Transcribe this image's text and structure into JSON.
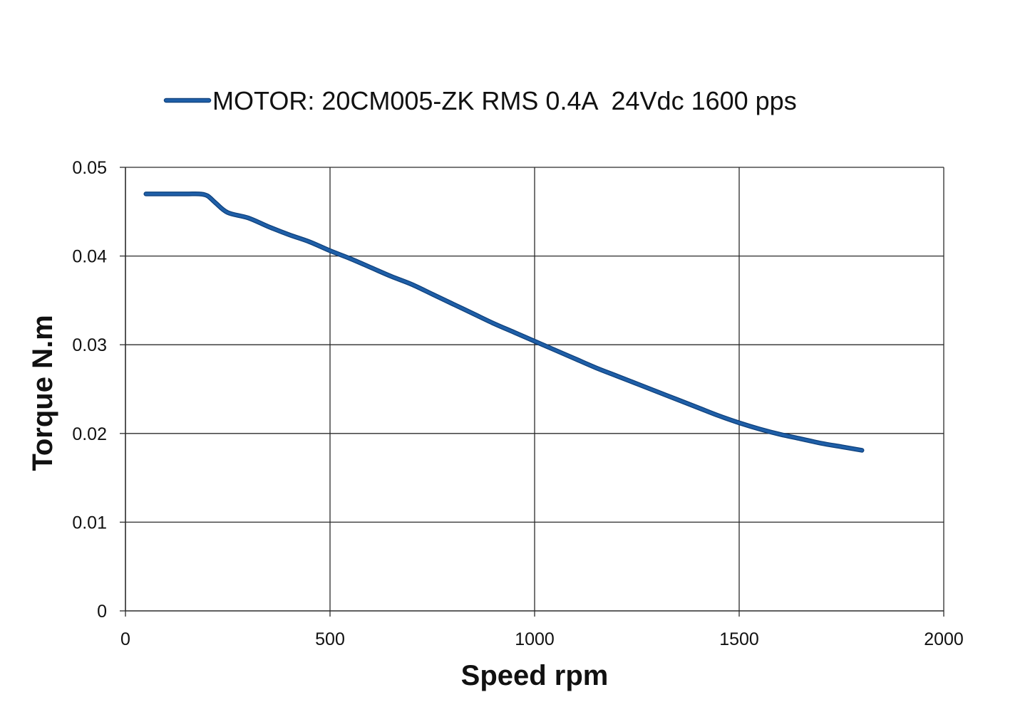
{
  "chart_data": {
    "type": "line",
    "title": "",
    "xlabel": "Speed rpm",
    "ylabel": "Torque N.m",
    "xlim": [
      0,
      2000
    ],
    "ylim": [
      0,
      0.05
    ],
    "x_ticks": [
      0,
      500,
      1000,
      1500,
      2000
    ],
    "y_ticks": [
      0,
      0.01,
      0.02,
      0.03,
      0.04,
      0.05
    ],
    "x_tick_labels": [
      "0",
      "500",
      "1000",
      "1500",
      "2000"
    ],
    "y_tick_labels": [
      "0",
      "0.01",
      "0.02",
      "0.03",
      "0.04",
      "0.05"
    ],
    "grid": true,
    "legend_position": "top",
    "series": [
      {
        "name": "MOTOR: 20CM005-ZK RMS 0.4A  24Vdc 1600 pps",
        "color": "#1f5fa8",
        "x": [
          50,
          100,
          150,
          180,
          200,
          220,
          250,
          300,
          350,
          400,
          450,
          500,
          550,
          600,
          650,
          700,
          750,
          800,
          850,
          900,
          950,
          1000,
          1050,
          1100,
          1150,
          1200,
          1250,
          1300,
          1350,
          1400,
          1450,
          1500,
          1550,
          1600,
          1650,
          1700,
          1750,
          1800
        ],
        "y": [
          0.047,
          0.047,
          0.047,
          0.047,
          0.0468,
          0.046,
          0.0449,
          0.0443,
          0.0433,
          0.0424,
          0.0416,
          0.0406,
          0.0397,
          0.0387,
          0.0377,
          0.0368,
          0.0357,
          0.0346,
          0.0335,
          0.0324,
          0.0314,
          0.0304,
          0.0294,
          0.0284,
          0.0274,
          0.0265,
          0.0256,
          0.0247,
          0.0238,
          0.0229,
          0.022,
          0.0212,
          0.0205,
          0.0199,
          0.0194,
          0.0189,
          0.0185,
          0.0181
        ]
      }
    ]
  }
}
